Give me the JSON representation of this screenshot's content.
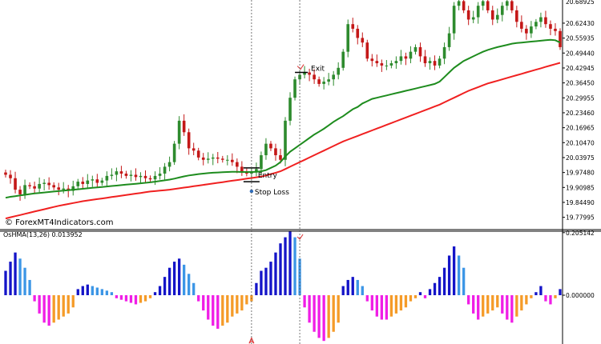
{
  "colors": {
    "bull": "#2e8b2e",
    "bear": "#c41818",
    "ema_fast": "#1e8c1e",
    "ema_slow": "#f02020",
    "osma_up_strong": "#1414c8",
    "osma_up_weak": "#3c96e6",
    "osma_down_strong": "#f01ee6",
    "osma_down_weak": "#f59b28",
    "marker": "#e03030",
    "stop_dot": "#2e6fc0"
  },
  "watermark": "© ForexMT4Indicators.com",
  "chart_data": [
    {
      "type": "candlestick",
      "name": "price",
      "ylim": [
        19.73,
        20.725
      ],
      "yticks": [
        "20.62430",
        "20.55935",
        "20.49440",
        "20.42945",
        "20.36450",
        "20.29955",
        "20.23460",
        "20.16965",
        "20.10470",
        "20.03975",
        "19.97480",
        "19.90985",
        "19.84490",
        "19.77995"
      ],
      "top_label_partial": "20.68925",
      "close": [
        19.965,
        19.95,
        19.9,
        19.88,
        19.92,
        19.915,
        19.905,
        19.925,
        19.93,
        19.92,
        19.91,
        19.9,
        19.905,
        19.895,
        19.915,
        19.935,
        19.925,
        19.94,
        19.945,
        19.93,
        19.94,
        19.96,
        19.965,
        19.98,
        19.97,
        19.96,
        19.965,
        19.955,
        19.96,
        19.95,
        19.945,
        19.96,
        19.97,
        20.0,
        20.02,
        20.1,
        20.2,
        20.15,
        20.08,
        20.07,
        20.04,
        20.03,
        20.035,
        20.04,
        20.035,
        20.03,
        20.03,
        20.02,
        20.0,
        19.98,
        19.97,
        19.975,
        19.99,
        20.05,
        20.1,
        20.08,
        20.05,
        20.03,
        20.2,
        20.3,
        20.38,
        20.4,
        20.41,
        20.4,
        20.38,
        20.36,
        20.37,
        20.38,
        20.4,
        20.43,
        20.5,
        20.62,
        20.6,
        20.56,
        20.54,
        20.47,
        20.46,
        20.45,
        20.44,
        20.44,
        20.45,
        20.46,
        20.48,
        20.47,
        20.5,
        20.52,
        20.48,
        20.45,
        20.46,
        20.44,
        20.47,
        20.52,
        20.58,
        20.7,
        20.72,
        20.68,
        20.64,
        20.65,
        20.7,
        20.72,
        20.68,
        20.64,
        20.66,
        20.7,
        20.72,
        20.68,
        20.63,
        20.6,
        20.58,
        20.61,
        20.63,
        20.65,
        20.62,
        20.6,
        20.59,
        20.52
      ],
      "ema_fast": [
        19.865,
        19.869,
        19.872,
        19.875,
        19.878,
        19.881,
        19.884,
        19.886,
        19.888,
        19.89,
        19.892,
        19.894,
        19.896,
        19.898,
        19.9,
        19.902,
        19.904,
        19.906,
        19.908,
        19.91,
        19.912,
        19.914,
        19.916,
        19.918,
        19.92,
        19.922,
        19.924,
        19.926,
        19.928,
        19.93,
        19.932,
        19.935,
        19.938,
        19.941,
        19.944,
        19.948,
        19.953,
        19.958,
        19.962,
        19.965,
        19.968,
        19.97,
        19.972,
        19.974,
        19.975,
        19.976,
        19.977,
        19.978,
        19.978,
        19.977,
        19.977,
        19.977,
        19.978,
        19.98,
        19.985,
        19.995,
        20.005,
        20.02,
        20.045,
        20.065,
        20.08,
        20.095,
        20.11,
        20.125,
        20.14,
        20.152,
        20.165,
        20.18,
        20.195,
        20.208,
        20.22,
        20.235,
        20.25,
        20.26,
        20.275,
        20.285,
        20.295,
        20.3,
        20.305,
        20.31,
        20.315,
        20.32,
        20.325,
        20.33,
        20.335,
        20.34,
        20.345,
        20.35,
        20.355,
        20.36,
        20.37,
        20.39,
        20.41,
        20.43,
        20.445,
        20.46,
        20.47,
        20.48,
        20.49,
        20.5,
        20.508,
        20.514,
        20.52,
        20.525,
        20.53,
        20.535,
        20.538,
        20.54,
        20.542,
        20.544,
        20.546,
        20.548,
        20.55,
        20.552,
        20.55,
        20.54
      ],
      "ema_slow": [
        19.775,
        19.78,
        19.785,
        19.79,
        19.795,
        19.8,
        19.805,
        19.81,
        19.815,
        19.82,
        19.825,
        19.83,
        19.834,
        19.838,
        19.842,
        19.846,
        19.85,
        19.853,
        19.856,
        19.859,
        19.862,
        19.865,
        19.868,
        19.871,
        19.874,
        19.877,
        19.88,
        19.883,
        19.886,
        19.889,
        19.892,
        19.894,
        19.896,
        19.898,
        19.9,
        19.903,
        19.906,
        19.909,
        19.912,
        19.915,
        19.918,
        19.921,
        19.924,
        19.927,
        19.93,
        19.933,
        19.936,
        19.939,
        19.942,
        19.945,
        19.948,
        19.951,
        19.954,
        19.957,
        19.962,
        19.968,
        19.974,
        19.98,
        19.99,
        20.0,
        20.01,
        20.02,
        20.03,
        20.04,
        20.05,
        20.06,
        20.07,
        20.08,
        20.09,
        20.1,
        20.11,
        20.118,
        20.126,
        20.134,
        20.142,
        20.15,
        20.158,
        20.166,
        20.174,
        20.182,
        20.19,
        20.198,
        20.206,
        20.214,
        20.222,
        20.23,
        20.238,
        20.246,
        20.254,
        20.262,
        20.27,
        20.28,
        20.29,
        20.3,
        20.31,
        20.32,
        20.33,
        20.338,
        20.346,
        20.354,
        20.362,
        20.368,
        20.374,
        20.38,
        20.386,
        20.392,
        20.398,
        20.404,
        20.41,
        20.416,
        20.422,
        20.428,
        20.434,
        20.44,
        20.446,
        20.452
      ],
      "annotations": {
        "entry_label": "Entry",
        "stop_label": "Stop Loss",
        "exit_label": "Exit",
        "entry_price": 19.995,
        "stop_price": 19.935,
        "exit_price": 20.41,
        "entry_bar": 51,
        "exit_bar": 61
      }
    },
    {
      "type": "bar",
      "name": "osma",
      "title": "OsHMA(13,26) 0.013952",
      "ylim": [
        -0.16,
        0.2125
      ],
      "yticks": [
        "0.205142",
        "0.000000"
      ],
      "values": [
        0.08,
        0.11,
        0.14,
        0.12,
        0.09,
        0.05,
        -0.02,
        -0.06,
        -0.09,
        -0.1,
        -0.09,
        -0.08,
        -0.07,
        -0.06,
        -0.04,
        0.02,
        0.03,
        0.035,
        0.03,
        0.025,
        0.02,
        0.015,
        0.01,
        -0.01,
        -0.015,
        -0.02,
        -0.025,
        -0.03,
        -0.025,
        -0.02,
        -0.01,
        0.01,
        0.03,
        0.06,
        0.09,
        0.11,
        0.12,
        0.1,
        0.07,
        0.04,
        -0.02,
        -0.05,
        -0.08,
        -0.1,
        -0.11,
        -0.1,
        -0.09,
        -0.07,
        -0.06,
        -0.05,
        -0.03,
        -0.02,
        0.04,
        0.08,
        0.09,
        0.11,
        0.14,
        0.17,
        0.19,
        0.21,
        0.19,
        0.12,
        -0.04,
        -0.09,
        -0.12,
        -0.14,
        -0.15,
        -0.14,
        -0.12,
        -0.09,
        0.03,
        0.05,
        0.06,
        0.05,
        0.03,
        -0.02,
        -0.05,
        -0.07,
        -0.08,
        -0.08,
        -0.07,
        -0.06,
        -0.05,
        -0.04,
        -0.02,
        -0.01,
        0.01,
        -0.01,
        0.02,
        0.04,
        0.06,
        0.09,
        0.13,
        0.16,
        0.13,
        0.09,
        -0.03,
        -0.06,
        -0.08,
        -0.07,
        -0.06,
        -0.05,
        -0.04,
        -0.06,
        -0.08,
        -0.09,
        -0.07,
        -0.05,
        -0.03,
        -0.01,
        0.01,
        0.03,
        -0.02,
        -0.03,
        -0.01,
        0.02
      ]
    }
  ]
}
